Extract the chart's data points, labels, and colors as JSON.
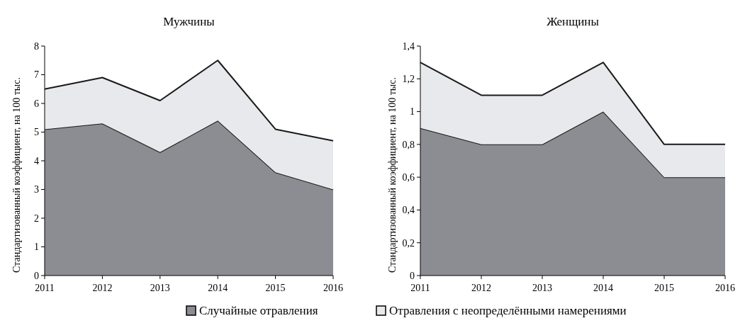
{
  "chart_data": [
    {
      "type": "area",
      "title": "Мужчины",
      "ylabel": "Стандартизованный коэффициент, на 100 тыс.",
      "categories": [
        "2011",
        "2012",
        "2013",
        "2014",
        "2015",
        "2016"
      ],
      "stacked": true,
      "legend": "bottom",
      "ylim": [
        0,
        8
      ],
      "yticks": [
        0,
        1,
        2,
        3,
        4,
        5,
        6,
        7,
        8
      ],
      "series": [
        {
          "name": "Случайные отравления",
          "color": "#8c8d92",
          "values": [
            5.1,
            5.3,
            4.3,
            5.4,
            3.6,
            3.0
          ]
        },
        {
          "name": "Отравления с неопределёнными намерениями",
          "color": "#e8e9ec",
          "values": [
            1.4,
            1.6,
            1.8,
            2.1,
            1.5,
            1.7
          ]
        }
      ]
    },
    {
      "type": "area",
      "title": "Женщины",
      "ylabel": "Стандартизованный коэффициент, на 100 тыс.",
      "categories": [
        "2011",
        "2012",
        "2013",
        "2014",
        "2015",
        "2016"
      ],
      "stacked": true,
      "ylim": [
        0,
        1.4
      ],
      "yticks": [
        0,
        {
          "value": 0.2,
          "label": "0,2"
        },
        {
          "value": 0.4,
          "label": "0,4"
        },
        {
          "value": 0.6,
          "label": "0,6"
        },
        {
          "value": 0.8,
          "label": "0,8"
        },
        1,
        {
          "value": 1.2,
          "label": "1,2"
        },
        {
          "value": 1.4,
          "label": "1,4"
        }
      ],
      "series": [
        {
          "color": "#8c8d92",
          "values": [
            0.9,
            0.8,
            0.8,
            1.0,
            0.6,
            0.6
          ]
        },
        {
          "color": "#e8e9ec",
          "values": [
            0.4,
            0.3,
            0.3,
            0.3,
            0.2,
            0.2
          ]
        }
      ]
    }
  ]
}
